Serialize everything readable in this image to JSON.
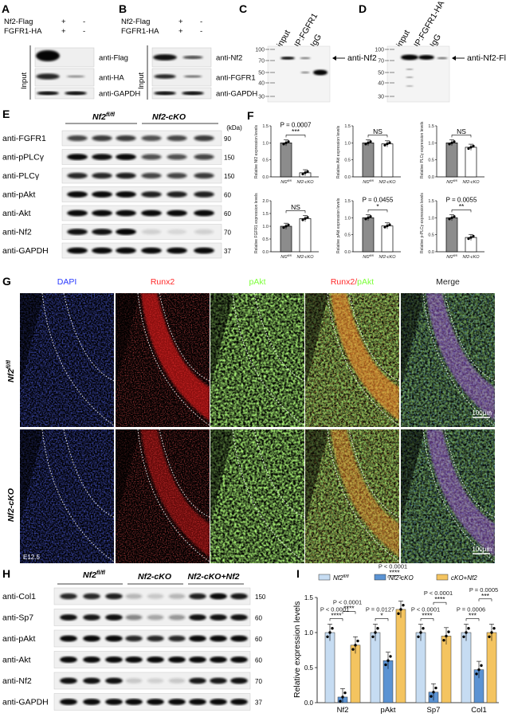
{
  "panels": {
    "A": {
      "label": "A",
      "cond": [
        {
          "name": "Nf2-Flag",
          "sign": "+",
          "neg": "-"
        },
        {
          "name": "FGFR1-HA",
          "sign": "+",
          "neg": "-"
        }
      ],
      "side": "Input",
      "blots": [
        "anti-Flag",
        "anti-HA",
        "anti-GAPDH"
      ]
    },
    "B": {
      "label": "B",
      "cond": [
        {
          "name": "Nf2-Flag",
          "sign": "+",
          "neg": "-"
        },
        {
          "name": "FGFR1-HA",
          "sign": "+",
          "neg": "-"
        }
      ],
      "side": "Input",
      "blots": [
        "anti-Nf2",
        "anti-FGFR1",
        "anti-GAPDH"
      ]
    },
    "C": {
      "label": "C",
      "lanes": [
        "input",
        "IP:FGFR1",
        "IgG"
      ],
      "markers": [
        "100",
        "70",
        "50",
        "40",
        "30"
      ],
      "arrow": "anti-Nf2"
    },
    "D": {
      "label": "D",
      "lanes": [
        "input",
        "IP:FGFR1-HA",
        "IgG"
      ],
      "markers": [
        "100",
        "70",
        "50",
        "40",
        "30"
      ],
      "arrow": "anti-Nf2-Flag"
    },
    "E": {
      "label": "E",
      "groups": [
        "Nf2",
        "Nf2-cKO"
      ],
      "group_sup": "fl/fl",
      "kda": "(kDa)",
      "rows": [
        {
          "name": "anti-FGFR1",
          "kda": "90"
        },
        {
          "name": "anti-pPLCγ",
          "kda": "150"
        },
        {
          "name": "anti-PLCγ",
          "kda": "150"
        },
        {
          "name": "anti-pAkt",
          "kda": "60"
        },
        {
          "name": "anti-Akt",
          "kda": "60"
        },
        {
          "name": "anti-Nf2",
          "kda": "70"
        },
        {
          "name": "anti-GAPDH",
          "kda": "37"
        }
      ]
    },
    "F": {
      "label": "F",
      "xcats": [
        "Nf2fl/fl",
        "Nf2-cKO"
      ],
      "charts": [
        {
          "ylabel": "Relative Nf2 expression levels",
          "values": [
            1.0,
            0.12
          ],
          "ylim": [
            0,
            1.5
          ],
          "ticks": [
            "0.0",
            "0.5",
            "1.0",
            "1.5"
          ],
          "p": "P = 0.0007",
          "sig": "***"
        },
        {
          "ylabel": "Relative Akt expression levels",
          "values": [
            1.0,
            0.97
          ],
          "ylim": [
            0,
            1.5
          ],
          "ticks": [
            "0.0",
            "0.5",
            "1.0",
            "1.5"
          ],
          "p": "",
          "sig": "NS"
        },
        {
          "ylabel": "Relative PLCγ expression levels",
          "values": [
            1.0,
            0.87
          ],
          "ylim": [
            0,
            1.5
          ],
          "ticks": [
            "0.0",
            "0.5",
            "1.0",
            "1.5"
          ],
          "p": "",
          "sig": "NS"
        },
        {
          "ylabel": "Relative FGFR1 expression levels",
          "values": [
            1.0,
            1.3
          ],
          "ylim": [
            0,
            2.0
          ],
          "ticks": [
            "0.0",
            "0.5",
            "1.0",
            "1.5",
            "2.0"
          ],
          "p": "",
          "sig": "NS"
        },
        {
          "ylabel": "Relative pAkt expression levels",
          "values": [
            1.0,
            0.76
          ],
          "ylim": [
            0,
            1.5
          ],
          "ticks": [
            "0.0",
            "0.5",
            "1.0",
            "1.5"
          ],
          "p": "P = 0.0455",
          "sig": "*"
        },
        {
          "ylabel": "Relative p-PLCγ expression levels",
          "values": [
            1.0,
            0.42
          ],
          "ylim": [
            0,
            1.5
          ],
          "ticks": [
            "0.0",
            "0.5",
            "1.0",
            "1.5"
          ],
          "p": "P = 0.0055",
          "sig": "**"
        }
      ]
    },
    "G": {
      "label": "G",
      "columns": [
        "DAPI",
        "Runx2",
        "pAkt",
        "Runx2/",
        "pAkt",
        "Merge"
      ],
      "col_colors": {
        "dapi": "#2b3bff",
        "runx2": "#ff2a2a",
        "pakt": "#7dff3a",
        "merge": "#ffffff"
      },
      "rows": [
        "Nf2",
        "Nf2-cKO"
      ],
      "row_sup": "fl/fl",
      "scale": "100μm",
      "stage": "E12.5"
    },
    "H": {
      "label": "H",
      "groups": [
        "Nf2",
        "Nf2-cKO",
        "Nf2-cKO+Nf2"
      ],
      "group_sup": "fl/fl",
      "rows": [
        {
          "name": "anti-Col1",
          "kda": "150"
        },
        {
          "name": "anti-Sp7",
          "kda": "60"
        },
        {
          "name": "anti-pAkt",
          "kda": "60"
        },
        {
          "name": "anti-Akt",
          "kda": "60"
        },
        {
          "name": "anti-Nf2",
          "kda": "70"
        },
        {
          "name": "anti-GAPDH",
          "kda": "37"
        }
      ]
    },
    "I": {
      "label": "I",
      "chart_data": {
        "type": "bar",
        "categories": [
          "Nf2",
          "pAkt",
          "Sp7",
          "Col1"
        ],
        "series": [
          {
            "name": "Nf2fl/fl",
            "color": "#c6dcf2",
            "values": [
              1.0,
              1.0,
              1.0,
              1.0
            ]
          },
          {
            "name": "Nf2-cKO",
            "color": "#5b93d3",
            "values": [
              0.08,
              0.6,
              0.15,
              0.47
            ]
          },
          {
            "name": "cKO+Nf2",
            "color": "#f4c460",
            "values": [
              0.82,
              1.33,
              0.95,
              1.0
            ]
          }
        ],
        "ylabel": "Relative expression levels",
        "ylim": [
          0,
          1.5
        ],
        "yticks": [
          "0.0",
          "0.5",
          "1.0",
          "1.5"
        ],
        "legend": "top",
        "comparisons": [
          {
            "text": "P < 0.0001",
            "sig": "****"
          },
          {
            "text": "P < 0.0001",
            "sig": "****"
          },
          {
            "text": "P = 0.0127",
            "sig": "*"
          },
          {
            "text": "P < 0.0001",
            "sig": "****"
          },
          {
            "text": "P < 0.0001",
            "sig": "****"
          },
          {
            "text": "P < 0.0001",
            "sig": "****"
          },
          {
            "text": "P = 0.0006",
            "sig": "***"
          },
          {
            "text": "P = 0.0005",
            "sig": "***"
          }
        ]
      }
    }
  }
}
